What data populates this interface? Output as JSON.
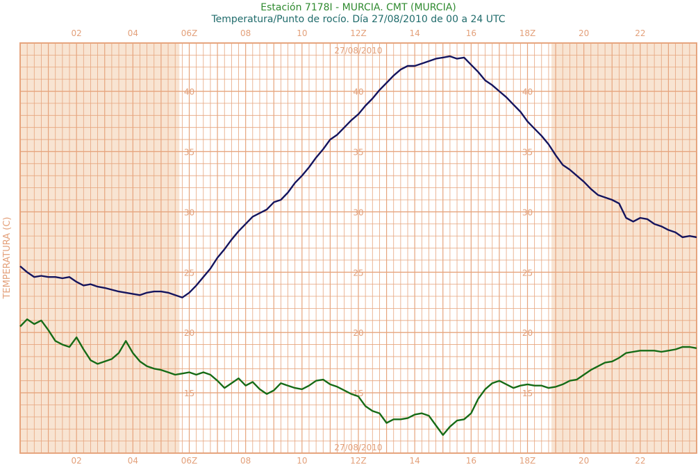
{
  "chart_data": {
    "type": "line",
    "title": "Estación 7178I - MURCIA. CMT (MURCIA)",
    "subtitle": "Temperatura/Punto de rocío. Día 27/08/2010 de 00 a 24 UTC",
    "ylabel": "TEMPERATURA (C)",
    "date_label": "27/08/2010",
    "xlim": [
      0,
      24
    ],
    "ylim": [
      10,
      44
    ],
    "x_ticks": [
      {
        "x": 2,
        "label": "02"
      },
      {
        "x": 4,
        "label": "04"
      },
      {
        "x": 6,
        "label": "06Z"
      },
      {
        "x": 8,
        "label": "08"
      },
      {
        "x": 10,
        "label": "10"
      },
      {
        "x": 12,
        "label": "12Z"
      },
      {
        "x": 14,
        "label": "14"
      },
      {
        "x": 16,
        "label": "16"
      },
      {
        "x": 18,
        "label": "18Z"
      },
      {
        "x": 20,
        "label": "20"
      },
      {
        "x": 22,
        "label": "22"
      }
    ],
    "y_ticks": [
      {
        "y": 15,
        "label": "15"
      },
      {
        "y": 20,
        "label": "20"
      },
      {
        "y": 25,
        "label": "25"
      },
      {
        "y": 30,
        "label": "30"
      },
      {
        "y": 35,
        "label": "35"
      },
      {
        "y": 40,
        "label": "40"
      }
    ],
    "night_shading": [
      [
        0,
        5.65
      ],
      [
        18.85,
        24
      ]
    ],
    "grid": true,
    "colors": {
      "background": "#ffffff",
      "night": "#f8e4d2",
      "grid": "#e6a47d",
      "temperature": "#14145e",
      "dewpoint": "#166b16"
    },
    "series": [
      {
        "key": "temperature",
        "color": "#14145e",
        "points": [
          [
            0,
            25.5
          ],
          [
            0.25,
            25.0
          ],
          [
            0.5,
            24.6
          ],
          [
            0.75,
            24.7
          ],
          [
            1,
            24.6
          ],
          [
            1.25,
            24.6
          ],
          [
            1.5,
            24.5
          ],
          [
            1.75,
            24.6
          ],
          [
            2,
            24.2
          ],
          [
            2.25,
            23.9
          ],
          [
            2.5,
            24.0
          ],
          [
            2.75,
            23.8
          ],
          [
            3,
            23.7
          ],
          [
            3.5,
            23.4
          ],
          [
            4,
            23.2
          ],
          [
            4.25,
            23.1
          ],
          [
            4.5,
            23.3
          ],
          [
            4.75,
            23.4
          ],
          [
            5,
            23.4
          ],
          [
            5.25,
            23.3
          ],
          [
            5.5,
            23.1
          ],
          [
            5.75,
            22.9
          ],
          [
            6,
            23.3
          ],
          [
            6.25,
            23.9
          ],
          [
            6.5,
            24.6
          ],
          [
            6.75,
            25.3
          ],
          [
            7,
            26.2
          ],
          [
            7.25,
            26.9
          ],
          [
            7.5,
            27.7
          ],
          [
            7.75,
            28.4
          ],
          [
            8,
            29.0
          ],
          [
            8.25,
            29.6
          ],
          [
            8.5,
            29.9
          ],
          [
            8.75,
            30.2
          ],
          [
            9,
            30.8
          ],
          [
            9.25,
            31.0
          ],
          [
            9.5,
            31.6
          ],
          [
            9.75,
            32.4
          ],
          [
            10,
            33.0
          ],
          [
            10.25,
            33.7
          ],
          [
            10.5,
            34.5
          ],
          [
            10.75,
            35.2
          ],
          [
            11,
            36.0
          ],
          [
            11.25,
            36.4
          ],
          [
            11.5,
            37.0
          ],
          [
            11.75,
            37.6
          ],
          [
            12,
            38.1
          ],
          [
            12.25,
            38.8
          ],
          [
            12.5,
            39.4
          ],
          [
            12.75,
            40.1
          ],
          [
            13,
            40.7
          ],
          [
            13.25,
            41.3
          ],
          [
            13.5,
            41.8
          ],
          [
            13.75,
            42.1
          ],
          [
            14,
            42.1
          ],
          [
            14.25,
            42.3
          ],
          [
            14.5,
            42.5
          ],
          [
            14.75,
            42.7
          ],
          [
            15,
            42.8
          ],
          [
            15.25,
            42.9
          ],
          [
            15.5,
            42.7
          ],
          [
            15.75,
            42.8
          ],
          [
            16,
            42.2
          ],
          [
            16.25,
            41.6
          ],
          [
            16.5,
            40.9
          ],
          [
            16.75,
            40.5
          ],
          [
            17,
            40.0
          ],
          [
            17.25,
            39.5
          ],
          [
            17.5,
            38.9
          ],
          [
            17.75,
            38.3
          ],
          [
            18,
            37.5
          ],
          [
            18.25,
            36.9
          ],
          [
            18.5,
            36.3
          ],
          [
            18.75,
            35.6
          ],
          [
            19,
            34.7
          ],
          [
            19.25,
            33.9
          ],
          [
            19.5,
            33.5
          ],
          [
            19.75,
            33.0
          ],
          [
            20,
            32.5
          ],
          [
            20.25,
            31.9
          ],
          [
            20.5,
            31.4
          ],
          [
            20.75,
            31.2
          ],
          [
            21,
            31.0
          ],
          [
            21.25,
            30.7
          ],
          [
            21.5,
            29.5
          ],
          [
            21.75,
            29.2
          ],
          [
            22,
            29.5
          ],
          [
            22.25,
            29.4
          ],
          [
            22.5,
            29.0
          ],
          [
            22.75,
            28.8
          ],
          [
            23,
            28.5
          ],
          [
            23.25,
            28.3
          ],
          [
            23.5,
            27.9
          ],
          [
            23.75,
            28.0
          ],
          [
            24,
            27.9
          ]
        ]
      },
      {
        "key": "dewpoint",
        "color": "#166b16",
        "points": [
          [
            0,
            20.5
          ],
          [
            0.25,
            21.1
          ],
          [
            0.5,
            20.7
          ],
          [
            0.75,
            21.0
          ],
          [
            1,
            20.2
          ],
          [
            1.25,
            19.3
          ],
          [
            1.5,
            19.0
          ],
          [
            1.75,
            18.8
          ],
          [
            2,
            19.6
          ],
          [
            2.25,
            18.6
          ],
          [
            2.5,
            17.7
          ],
          [
            2.75,
            17.4
          ],
          [
            3,
            17.6
          ],
          [
            3.25,
            17.8
          ],
          [
            3.5,
            18.3
          ],
          [
            3.75,
            19.3
          ],
          [
            4,
            18.3
          ],
          [
            4.25,
            17.6
          ],
          [
            4.5,
            17.2
          ],
          [
            4.75,
            17.0
          ],
          [
            5,
            16.9
          ],
          [
            5.25,
            16.7
          ],
          [
            5.5,
            16.5
          ],
          [
            5.75,
            16.6
          ],
          [
            6,
            16.7
          ],
          [
            6.25,
            16.5
          ],
          [
            6.5,
            16.7
          ],
          [
            6.75,
            16.5
          ],
          [
            7,
            16.0
          ],
          [
            7.25,
            15.4
          ],
          [
            7.5,
            15.8
          ],
          [
            7.75,
            16.2
          ],
          [
            8,
            15.6
          ],
          [
            8.25,
            15.9
          ],
          [
            8.5,
            15.3
          ],
          [
            8.75,
            14.9
          ],
          [
            9,
            15.2
          ],
          [
            9.25,
            15.8
          ],
          [
            9.5,
            15.6
          ],
          [
            9.75,
            15.4
          ],
          [
            10,
            15.3
          ],
          [
            10.25,
            15.6
          ],
          [
            10.5,
            16.0
          ],
          [
            10.75,
            16.1
          ],
          [
            11,
            15.7
          ],
          [
            11.25,
            15.5
          ],
          [
            11.5,
            15.2
          ],
          [
            11.75,
            14.9
          ],
          [
            12,
            14.7
          ],
          [
            12.25,
            13.9
          ],
          [
            12.5,
            13.5
          ],
          [
            12.75,
            13.3
          ],
          [
            13,
            12.5
          ],
          [
            13.25,
            12.8
          ],
          [
            13.5,
            12.8
          ],
          [
            13.75,
            12.9
          ],
          [
            14,
            13.2
          ],
          [
            14.25,
            13.3
          ],
          [
            14.5,
            13.1
          ],
          [
            14.75,
            12.3
          ],
          [
            15,
            11.5
          ],
          [
            15.25,
            12.2
          ],
          [
            15.5,
            12.7
          ],
          [
            15.75,
            12.8
          ],
          [
            16,
            13.3
          ],
          [
            16.25,
            14.5
          ],
          [
            16.5,
            15.3
          ],
          [
            16.75,
            15.8
          ],
          [
            17,
            16.0
          ],
          [
            17.25,
            15.7
          ],
          [
            17.5,
            15.4
          ],
          [
            17.75,
            15.6
          ],
          [
            18,
            15.7
          ],
          [
            18.25,
            15.6
          ],
          [
            18.5,
            15.6
          ],
          [
            18.75,
            15.4
          ],
          [
            19,
            15.5
          ],
          [
            19.25,
            15.7
          ],
          [
            19.5,
            16.0
          ],
          [
            19.75,
            16.1
          ],
          [
            20,
            16.5
          ],
          [
            20.25,
            16.9
          ],
          [
            20.5,
            17.2
          ],
          [
            20.75,
            17.5
          ],
          [
            21,
            17.6
          ],
          [
            21.25,
            17.9
          ],
          [
            21.5,
            18.3
          ],
          [
            21.75,
            18.4
          ],
          [
            22,
            18.5
          ],
          [
            22.25,
            18.5
          ],
          [
            22.5,
            18.5
          ],
          [
            22.75,
            18.4
          ],
          [
            23,
            18.5
          ],
          [
            23.25,
            18.6
          ],
          [
            23.5,
            18.8
          ],
          [
            23.75,
            18.8
          ],
          [
            24,
            18.7
          ]
        ]
      }
    ]
  }
}
